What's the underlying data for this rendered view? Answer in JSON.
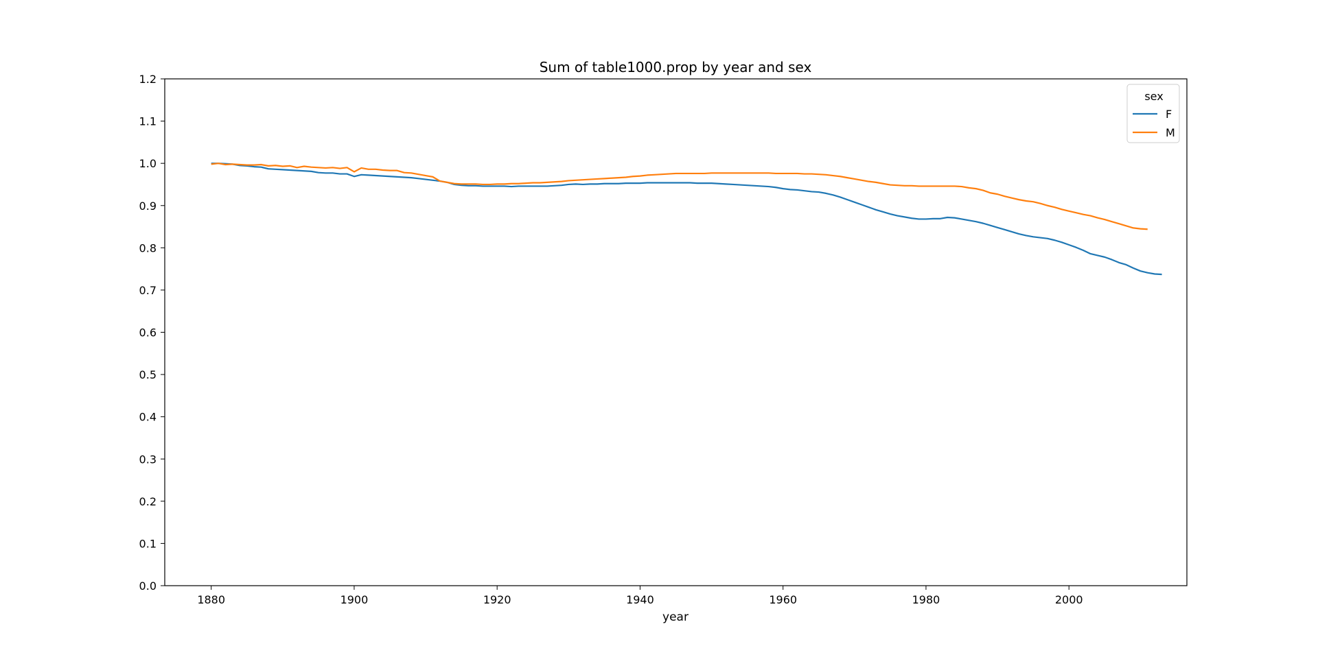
{
  "chart_data": {
    "type": "line",
    "title": "Sum of table1000.prop by year and sex",
    "xlabel": "year",
    "ylabel": "",
    "xlim": [
      1873.5,
      2016.5
    ],
    "ylim": [
      0.0,
      1.2
    ],
    "xticks": [
      1880,
      1900,
      1920,
      1940,
      1960,
      1980,
      2000
    ],
    "yticks": [
      0.0,
      0.1,
      0.2,
      0.3,
      0.4,
      0.5,
      0.6,
      0.7,
      0.8,
      0.9,
      1.0,
      1.1,
      1.2
    ],
    "grid": false,
    "legend": {
      "title": "sex",
      "placement": "top-right"
    },
    "x_start": 1880,
    "series": [
      {
        "name": "F",
        "color": "#1f77b4",
        "values": [
          1.0,
          1.0,
          0.999,
          0.998,
          0.995,
          0.994,
          0.992,
          0.991,
          0.987,
          0.986,
          0.985,
          0.984,
          0.983,
          0.982,
          0.981,
          0.978,
          0.977,
          0.977,
          0.975,
          0.975,
          0.969,
          0.973,
          0.972,
          0.971,
          0.97,
          0.969,
          0.968,
          0.967,
          0.966,
          0.964,
          0.962,
          0.96,
          0.958,
          0.955,
          0.95,
          0.948,
          0.947,
          0.947,
          0.946,
          0.946,
          0.946,
          0.946,
          0.945,
          0.946,
          0.946,
          0.946,
          0.946,
          0.946,
          0.947,
          0.948,
          0.95,
          0.951,
          0.95,
          0.951,
          0.951,
          0.952,
          0.952,
          0.952,
          0.953,
          0.953,
          0.953,
          0.954,
          0.954,
          0.954,
          0.954,
          0.954,
          0.954,
          0.954,
          0.953,
          0.953,
          0.953,
          0.952,
          0.951,
          0.95,
          0.949,
          0.948,
          0.947,
          0.946,
          0.945,
          0.943,
          0.94,
          0.938,
          0.937,
          0.935,
          0.933,
          0.932,
          0.929,
          0.925,
          0.92,
          0.914,
          0.908,
          0.902,
          0.896,
          0.89,
          0.885,
          0.88,
          0.876,
          0.873,
          0.87,
          0.868,
          0.868,
          0.869,
          0.869,
          0.872,
          0.871,
          0.868,
          0.865,
          0.862,
          0.858,
          0.853,
          0.848,
          0.843,
          0.838,
          0.833,
          0.829,
          0.826,
          0.824,
          0.822,
          0.818,
          0.813,
          0.807,
          0.801,
          0.794,
          0.786,
          0.782,
          0.778,
          0.772,
          0.765,
          0.76,
          0.752,
          0.745,
          0.741,
          0.738,
          0.737
        ]
      },
      {
        "name": "M",
        "color": "#ff7f0e",
        "values": [
          0.998,
          1.0,
          0.997,
          0.998,
          0.997,
          0.996,
          0.996,
          0.997,
          0.994,
          0.995,
          0.993,
          0.994,
          0.99,
          0.993,
          0.991,
          0.99,
          0.989,
          0.99,
          0.988,
          0.99,
          0.98,
          0.989,
          0.986,
          0.986,
          0.984,
          0.983,
          0.983,
          0.978,
          0.977,
          0.974,
          0.971,
          0.968,
          0.958,
          0.955,
          0.952,
          0.951,
          0.951,
          0.951,
          0.95,
          0.95,
          0.951,
          0.951,
          0.952,
          0.952,
          0.953,
          0.954,
          0.954,
          0.955,
          0.956,
          0.957,
          0.959,
          0.96,
          0.961,
          0.962,
          0.963,
          0.964,
          0.965,
          0.966,
          0.967,
          0.969,
          0.97,
          0.972,
          0.973,
          0.974,
          0.975,
          0.976,
          0.976,
          0.976,
          0.976,
          0.976,
          0.977,
          0.977,
          0.977,
          0.977,
          0.977,
          0.977,
          0.977,
          0.977,
          0.977,
          0.976,
          0.976,
          0.976,
          0.976,
          0.975,
          0.975,
          0.974,
          0.973,
          0.971,
          0.969,
          0.966,
          0.963,
          0.96,
          0.957,
          0.955,
          0.952,
          0.949,
          0.948,
          0.947,
          0.947,
          0.946,
          0.946,
          0.946,
          0.946,
          0.946,
          0.946,
          0.945,
          0.942,
          0.94,
          0.936,
          0.93,
          0.927,
          0.922,
          0.918,
          0.914,
          0.911,
          0.909,
          0.905,
          0.9,
          0.896,
          0.891,
          0.887,
          0.883,
          0.879,
          0.876,
          0.871,
          0.867,
          0.862,
          0.857,
          0.852,
          0.847,
          0.845,
          0.844
        ]
      }
    ]
  }
}
